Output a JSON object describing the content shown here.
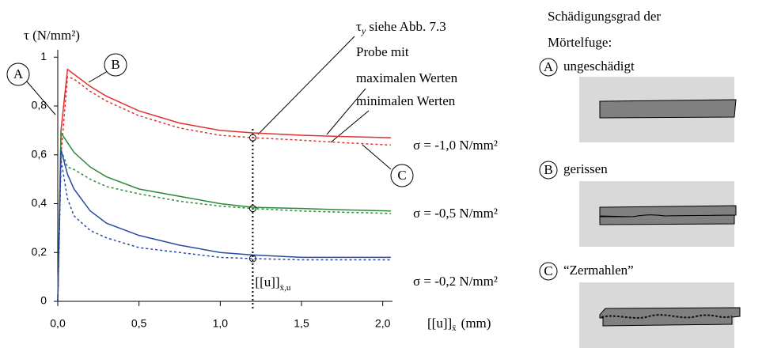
{
  "chart_data": {
    "type": "line",
    "y_label": "τ (N/mm²)",
    "x_label": "[[u]]",
    "x_label_sub": "x̄",
    "x_label_unit": "(mm)",
    "x": [
      0,
      0.02,
      0.06,
      0.1,
      0.2,
      0.3,
      0.5,
      0.75,
      1.0,
      1.2,
      1.5,
      1.75,
      2.05
    ],
    "series": [
      {
        "color": "#e03030",
        "dashed": false,
        "values": [
          0,
          0.7,
          0.95,
          0.93,
          0.88,
          0.84,
          0.78,
          0.73,
          0.7,
          0.69,
          0.68,
          0.675,
          0.67
        ]
      },
      {
        "color": "#e03030",
        "dashed": true,
        "values": [
          0,
          0.6,
          0.92,
          0.91,
          0.86,
          0.82,
          0.76,
          0.71,
          0.68,
          0.67,
          0.66,
          0.65,
          0.64
        ]
      },
      {
        "color": "#2a8a3a",
        "dashed": false,
        "values": [
          0,
          0.69,
          0.65,
          0.61,
          0.55,
          0.51,
          0.46,
          0.43,
          0.4,
          0.385,
          0.38,
          0.375,
          0.37
        ]
      },
      {
        "color": "#2a8a3a",
        "dashed": true,
        "values": [
          0,
          0.62,
          0.55,
          0.54,
          0.5,
          0.47,
          0.44,
          0.41,
          0.39,
          0.38,
          0.37,
          0.365,
          0.36
        ]
      },
      {
        "color": "#2a4aa0",
        "dashed": false,
        "values": [
          0,
          0.62,
          0.52,
          0.46,
          0.37,
          0.32,
          0.27,
          0.23,
          0.2,
          0.19,
          0.18,
          0.18,
          0.18
        ]
      },
      {
        "color": "#2a4aa0",
        "dashed": true,
        "values": [
          0,
          0.58,
          0.42,
          0.35,
          0.29,
          0.26,
          0.22,
          0.2,
          0.18,
          0.175,
          0.17,
          0.17,
          0.17
        ]
      }
    ],
    "xlim": [
      0,
      2.06
    ],
    "ylim": [
      0,
      1.03
    ],
    "xticks": [
      {
        "value": 0,
        "label": "0,0"
      },
      {
        "value": 0.5,
        "label": "0,5"
      },
      {
        "value": 1,
        "label": "1,0"
      },
      {
        "value": 1.5,
        "label": "1,5"
      },
      {
        "value": 2,
        "label": "2,0"
      }
    ],
    "yticks": [
      0,
      {
        "value": 0.2,
        "label": "0,2"
      },
      {
        "value": 0.4,
        "label": "0,4"
      },
      {
        "value": 0.6,
        "label": "0,6"
      },
      {
        "value": 0.8,
        "label": "0,8"
      },
      1
    ],
    "marker_x": 1.2,
    "marker_label": "[[u]]",
    "marker_label_sub": "x̄,u",
    "sigma_labels": [
      "σ = -1,0 N/mm²",
      "σ = -0,5 N/mm²",
      "σ = -0,2 N/mm²"
    ],
    "callouts": [
      "A",
      "B",
      "C"
    ],
    "notes": {
      "tau": "τ",
      "tau_sub": "y",
      "tau_rest": " siehe Abb. 7.3",
      "probe": "Probe mit",
      "max": "maximalen Werten",
      "min": "minimalen Werten"
    }
  },
  "panel": {
    "title": [
      "Schädigungsgrad der",
      "Mörtelfuge:"
    ],
    "items": [
      {
        "letter": "A",
        "label": "ungeschädigt"
      },
      {
        "letter": "B",
        "label": "gerissen"
      },
      {
        "letter": "C",
        "label": "“Zermahlen”"
      }
    ]
  }
}
